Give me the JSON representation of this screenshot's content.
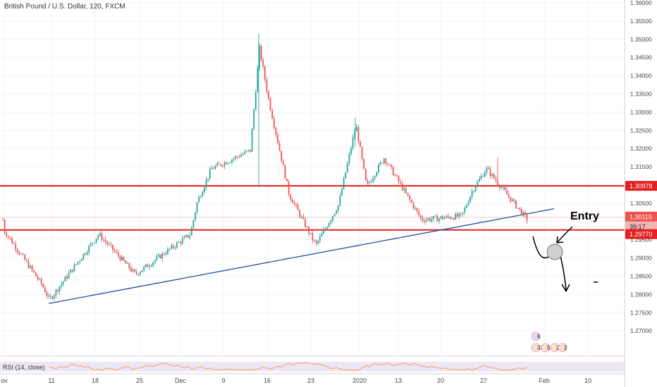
{
  "title": "British Pound / U.S. Dollar, 120, FXCM",
  "annotation": {
    "entry_label": "Entry"
  },
  "indicator": {
    "label": "RSI (14, close)"
  },
  "price_badges": {
    "level_high": "1.30978",
    "last": "1.30115",
    "countdown": "39:17",
    "level_low": "1.29770"
  },
  "event_badges": [
    "6",
    "33",
    "51",
    "2",
    "2"
  ],
  "colors": {
    "up": "#26a69a",
    "down": "#ef5350",
    "level": "#e52020",
    "trendline": "#1e4fa0",
    "rsi": "#f5a05a",
    "rsi_band": "#ece6f6"
  },
  "chart_data": {
    "type": "candlestick",
    "title": "British Pound / U.S. Dollar, 120, FXCM",
    "x_ticks": [
      "ov",
      "11",
      "18",
      "25",
      "Dec",
      "9",
      "16",
      "23",
      "2020",
      "13",
      "20",
      "27",
      "Feb",
      "10"
    ],
    "y_ticks": [
      "1.36000",
      "1.35500",
      "1.35000",
      "1.34500",
      "1.34000",
      "1.33500",
      "1.33000",
      "1.32500",
      "1.32000",
      "1.31500",
      "1.31000",
      "1.30500",
      "1.30000",
      "1.29500",
      "1.29000",
      "1.28500",
      "1.28000",
      "1.27500",
      "1.27000"
    ],
    "ylim": [
      1.2695,
      1.3605
    ],
    "horizontal_levels": [
      1.30978,
      1.2977
    ],
    "last_price": 1.30115,
    "price_path": [
      [
        "ov",
        1.2975
      ],
      [
        "11",
        1.2825
      ],
      [
        "11",
        1.2785
      ],
      [
        "18",
        1.2965
      ],
      [
        "25",
        1.2855
      ],
      [
        "Dec",
        1.2965
      ],
      [
        "Dec",
        1.3055
      ],
      [
        "9",
        1.3145
      ],
      [
        "16",
        1.3195
      ],
      [
        "16",
        1.3475
      ],
      [
        "16",
        1.3345
      ],
      [
        "23",
        1.3075
      ],
      [
        "23",
        1.2935
      ],
      [
        "2020",
        1.3045
      ],
      [
        "2020",
        1.3265
      ],
      [
        "2020",
        1.3095
      ],
      [
        "13",
        1.3175
      ],
      [
        "13",
        1.3005
      ],
      [
        "20",
        1.3015
      ],
      [
        "20",
        1.3085
      ],
      [
        "27",
        1.3145
      ],
      [
        "27",
        1.3005
      ]
    ],
    "trendline": {
      "from": [
        "11",
        1.2775
      ],
      "to": [
        "Feb",
        1.3035
      ]
    },
    "rsi_series_name": "RSI (14, close)"
  }
}
